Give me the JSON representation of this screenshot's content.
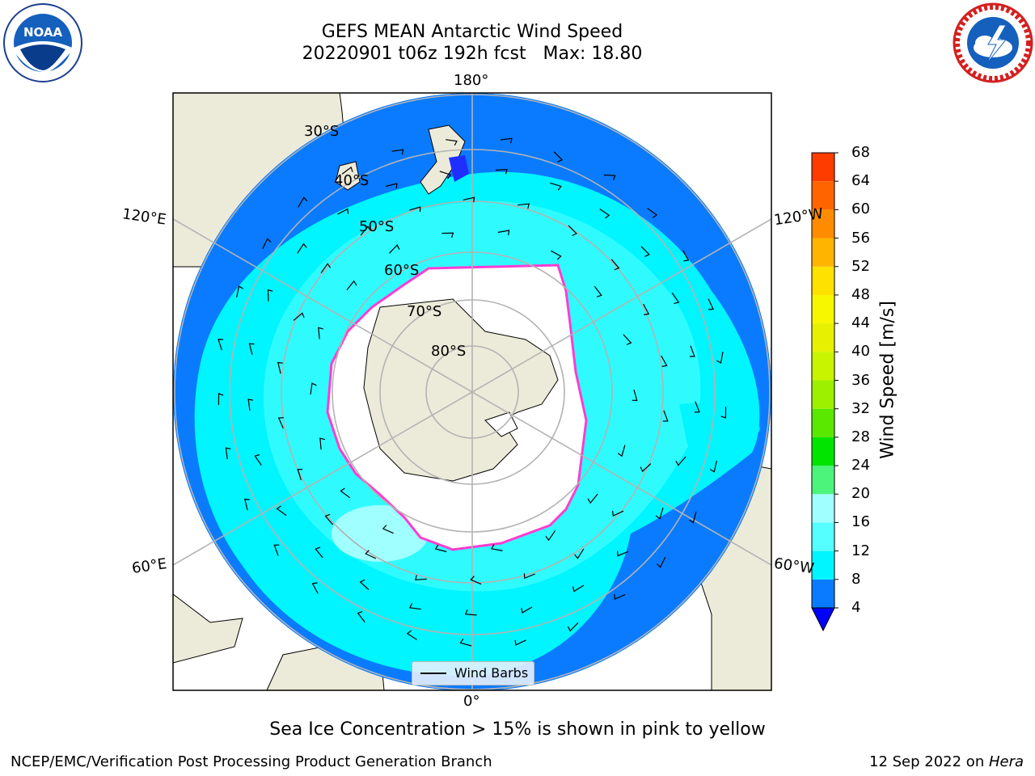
{
  "header": {
    "title_line1": "GEFS MEAN Antarctic Wind Speed",
    "title_line2": "20220901 t06z 192h fcst   Max: 18.80"
  },
  "logos": {
    "left": "noaa-logo",
    "right": "national-weather-service-logo",
    "left_text": "NOAA",
    "left_ring_text": "NATIONAL OCEANIC AND ATMOSPHERIC ADMINISTRATION · U.S. DEPARTMENT OF COMMERCE",
    "right_ring_text": "NATIONAL WEATHER SERVICE"
  },
  "map": {
    "projection": "south-polar-stereographic",
    "longitude_labels": {
      "top": "180°",
      "bottom": "0°",
      "left_upper": "120°E",
      "left_lower": "60°E",
      "right_upper": "120°W",
      "right_lower": "60°W"
    },
    "latitude_labels": [
      "30°S",
      "40°S",
      "50°S",
      "60°S",
      "70°S",
      "80°S"
    ],
    "legend_label": "Wind Barbs",
    "colors": {
      "land": "#ecebda",
      "sea_ice": "#ffffff",
      "wind_4_8": "#0a7bff",
      "wind_8_12": "#00f5ff",
      "wind_12_16": "#55ffff",
      "wind_16_20": "#a0ffff",
      "grid": "#b3b3b3"
    }
  },
  "colorbar": {
    "label": "Wind Speed [m/s]",
    "ticks": [
      "4",
      "8",
      "12",
      "16",
      "20",
      "24",
      "28",
      "32",
      "36",
      "40",
      "44",
      "48",
      "52",
      "56",
      "60",
      "64",
      "68"
    ],
    "colors": [
      "#0a7bff",
      "#00f5ff",
      "#55ffff",
      "#a0ffff",
      "#4cf47c",
      "#00e400",
      "#5ae800",
      "#9cf000",
      "#c8f400",
      "#e6f000",
      "#f7f700",
      "#ffe100",
      "#ffb400",
      "#ff8c00",
      "#ff6400",
      "#ff3c00",
      "#ff0000"
    ],
    "under_color": "#0000ff"
  },
  "caption": "Sea Ice Concentration > 15% is shown in pink to yellow",
  "footer": {
    "left": "NCEP/EMC/Verification Post Processing Product Generation Branch",
    "date": "12 Sep 2022 on ",
    "machine": "Hera"
  }
}
